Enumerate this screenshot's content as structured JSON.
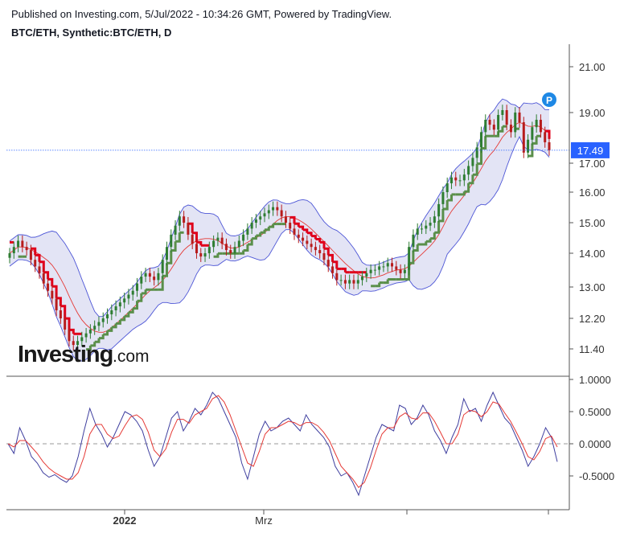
{
  "header": {
    "published": "Published on Investing.com, 5/Jul/2022 - 10:34:26 GMT, Powered by TradingView.",
    "symbol": "BTC/ETH, Synthetic:BTC/ETH, D"
  },
  "watermark": {
    "brand": "Investing",
    "suffix": ".com"
  },
  "colors": {
    "up": "#2e7d32",
    "down": "#b71c1c",
    "band_fill": "#e3e4f5",
    "band_line": "#4c55d6",
    "mid_line": "#e53935",
    "stop_down": "#e0001b",
    "stop_up": "#5a8f4a",
    "osc_main": "#3f3f9f",
    "osc_signal": "#e53935",
    "last_price_bg": "#2962ff"
  },
  "chart_data": [
    {
      "type": "line",
      "title": "BTC/ETH, Synthetic:BTC/ETH, D",
      "series_kind": "candlestick",
      "x_tick_labels": [
        "2022",
        "Mrz"
      ],
      "y_tick_labels": [
        "21.00",
        "19.00",
        "17.00",
        "16.00",
        "15.00",
        "14.00",
        "13.00",
        "12.20",
        "11.40"
      ],
      "ylim": [
        10.9,
        21.7
      ],
      "y_scale": "log",
      "last_price": "17.49",
      "marker_label": "P",
      "close": [
        14.0,
        14.2,
        14.4,
        14.2,
        14.1,
        13.8,
        13.6,
        13.4,
        13.1,
        12.9,
        12.7,
        12.4,
        12.2,
        11.9,
        11.6,
        11.5,
        11.6,
        11.7,
        11.8,
        11.9,
        12.0,
        12.1,
        12.2,
        12.3,
        12.4,
        12.5,
        12.6,
        12.7,
        12.8,
        12.9,
        13.1,
        13.3,
        13.4,
        13.3,
        13.2,
        13.4,
        13.8,
        14.2,
        14.6,
        14.9,
        15.2,
        15.0,
        14.6,
        14.3,
        14.0,
        13.9,
        14.0,
        14.2,
        14.4,
        14.5,
        14.3,
        14.1,
        14.0,
        14.2,
        14.4,
        14.6,
        14.8,
        15.0,
        15.1,
        15.2,
        15.3,
        15.4,
        15.5,
        15.4,
        15.2,
        15.0,
        14.8,
        14.6,
        14.5,
        14.4,
        14.3,
        14.2,
        14.1,
        14.0,
        13.8,
        13.6,
        13.4,
        13.2,
        13.2,
        13.1,
        13.2,
        13.1,
        13.2,
        13.3,
        13.4,
        13.5,
        13.5,
        13.6,
        13.6,
        13.7,
        13.6,
        13.5,
        13.4,
        13.5,
        14.2,
        14.6,
        14.8,
        14.8,
        14.9,
        15.0,
        15.2,
        15.6,
        16.0,
        16.3,
        16.5,
        16.4,
        16.4,
        16.6,
        16.9,
        17.2,
        17.6,
        18.2,
        18.7,
        18.5,
        18.3,
        18.9,
        19.1,
        18.5,
        18.2,
        19.0,
        18.6,
        17.4,
        17.9,
        18.4,
        18.7,
        18.2,
        17.8,
        17.49
      ],
      "indicators": [
        "upper band",
        "middle band",
        "lower band",
        "trailing stop"
      ]
    },
    {
      "type": "line",
      "y_tick_labels": [
        "1.0000",
        "0.5000",
        "0.0000",
        "-0.5000"
      ],
      "ylim": [
        -1.05,
        1.05
      ],
      "reference_line": 0.0,
      "main": [
        0.0,
        -0.15,
        0.25,
        0.05,
        -0.2,
        -0.3,
        -0.45,
        -0.52,
        -0.48,
        -0.55,
        -0.6,
        -0.5,
        -0.2,
        0.2,
        0.55,
        0.3,
        0.15,
        -0.05,
        0.1,
        0.3,
        0.5,
        0.45,
        0.35,
        0.2,
        -0.1,
        -0.35,
        -0.2,
        0.1,
        0.4,
        0.5,
        0.2,
        0.35,
        0.55,
        0.45,
        0.6,
        0.8,
        0.7,
        0.5,
        0.3,
        0.1,
        -0.3,
        -0.55,
        -0.2,
        0.15,
        0.35,
        0.2,
        0.25,
        0.35,
        0.4,
        0.3,
        0.2,
        0.45,
        0.3,
        0.2,
        0.1,
        -0.05,
        -0.35,
        -0.5,
        -0.45,
        -0.6,
        -0.8,
        -0.5,
        -0.2,
        0.1,
        0.3,
        0.25,
        0.2,
        0.6,
        0.55,
        0.3,
        0.4,
        0.6,
        0.45,
        0.2,
        0.05,
        -0.15,
        0.1,
        0.3,
        0.7,
        0.5,
        0.55,
        0.35,
        0.6,
        0.8,
        0.6,
        0.4,
        0.3,
        0.1,
        -0.1,
        -0.35,
        -0.2,
        0.0,
        0.25,
        0.1,
        -0.28
      ],
      "signal": [
        0.0,
        -0.05,
        0.05,
        0.05,
        -0.05,
        -0.15,
        -0.28,
        -0.38,
        -0.45,
        -0.5,
        -0.55,
        -0.55,
        -0.45,
        -0.2,
        0.15,
        0.3,
        0.3,
        0.15,
        0.08,
        0.12,
        0.28,
        0.42,
        0.45,
        0.38,
        0.18,
        -0.1,
        -0.2,
        -0.08,
        0.18,
        0.38,
        0.38,
        0.32,
        0.45,
        0.5,
        0.55,
        0.7,
        0.75,
        0.65,
        0.45,
        0.2,
        -0.05,
        -0.3,
        -0.35,
        -0.12,
        0.15,
        0.25,
        0.25,
        0.3,
        0.35,
        0.33,
        0.28,
        0.33,
        0.33,
        0.28,
        0.18,
        0.05,
        -0.15,
        -0.35,
        -0.45,
        -0.55,
        -0.68,
        -0.6,
        -0.38,
        -0.1,
        0.15,
        0.25,
        0.25,
        0.42,
        0.48,
        0.4,
        0.38,
        0.48,
        0.48,
        0.35,
        0.18,
        0.0,
        0.0,
        0.15,
        0.45,
        0.52,
        0.5,
        0.42,
        0.5,
        0.65,
        0.62,
        0.48,
        0.35,
        0.18,
        0.0,
        -0.2,
        -0.25,
        -0.12,
        0.08,
        0.12,
        -0.05
      ]
    }
  ]
}
